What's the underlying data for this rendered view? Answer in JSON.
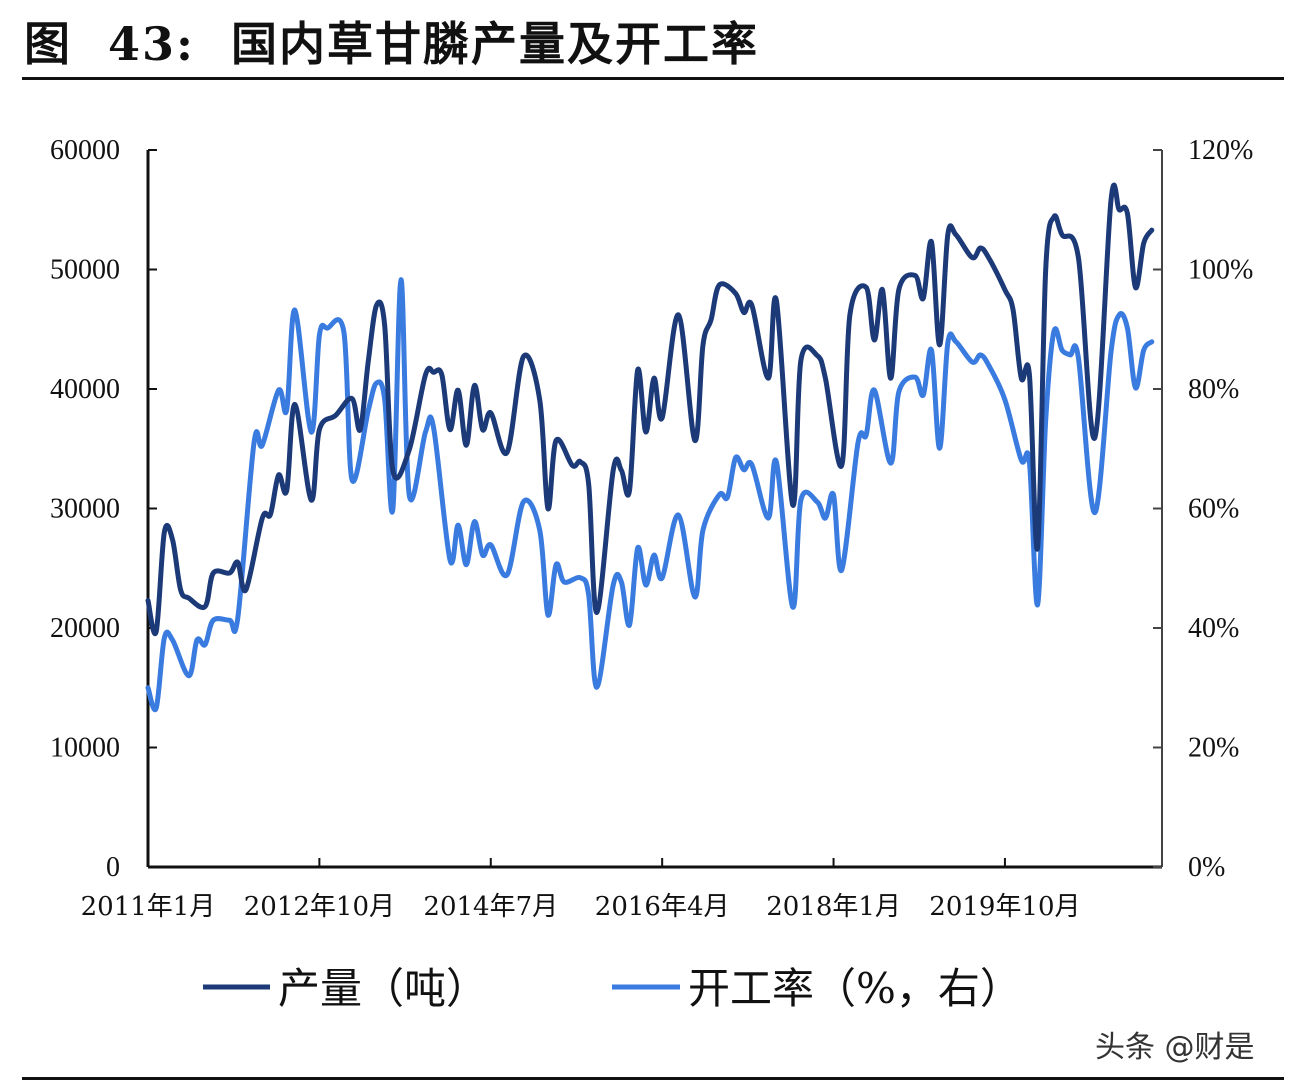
{
  "title": "图  43:  国内草甘膦产量及开工率",
  "watermark": "头条 @财是",
  "colors": {
    "production": "#1c3a78",
    "rate": "#3a7be0"
  },
  "chart_data": {
    "type": "line",
    "title": "国内草甘膦产量及开工率",
    "grid": false,
    "legend_position": "bottom",
    "x_tick_labels": [
      "2011年1月",
      "2012年10月",
      "2014年7月",
      "2016年4月",
      "2018年1月",
      "2019年10月"
    ],
    "x_tick_dates": [
      "2011-01",
      "2012-10",
      "2014-07",
      "2016-04",
      "2018-01",
      "2019-10"
    ],
    "x_range": [
      "2011-01",
      "2021-05"
    ],
    "y_left": {
      "range": [
        0,
        60000
      ],
      "ticks": [
        "0",
        "10000",
        "20000",
        "30000",
        "40000",
        "50000",
        "60000"
      ]
    },
    "y_right": {
      "range": [
        0,
        120
      ],
      "ticks": [
        "0%",
        "20%",
        "40%",
        "60%",
        "80%",
        "100%",
        "120%"
      ]
    },
    "series": [
      {
        "name": "产量（吨）",
        "axis": "left",
        "points": [
          [
            "2011-01",
            22300
          ],
          [
            "2011-02",
            19700
          ],
          [
            "2011-03",
            28000
          ],
          [
            "2011-04",
            27400
          ],
          [
            "2011-05",
            23200
          ],
          [
            "2011-06",
            22500
          ],
          [
            "2011-08",
            21800
          ],
          [
            "2011-09",
            24600
          ],
          [
            "2011-11",
            24600
          ],
          [
            "2011-12",
            25500
          ],
          [
            "2012-01",
            23200
          ],
          [
            "2012-03",
            29200
          ],
          [
            "2012-04",
            29500
          ],
          [
            "2012-05",
            32800
          ],
          [
            "2012-06",
            31500
          ],
          [
            "2012-07",
            38700
          ],
          [
            "2012-09",
            30700
          ],
          [
            "2012-10",
            36600
          ],
          [
            "2012-12",
            37800
          ],
          [
            "2013-02",
            39200
          ],
          [
            "2013-03",
            36600
          ],
          [
            "2013-04",
            42400
          ],
          [
            "2013-05",
            47000
          ],
          [
            "2013-06",
            45300
          ],
          [
            "2013-07",
            33200
          ],
          [
            "2013-09",
            34900
          ],
          [
            "2013-11",
            41200
          ],
          [
            "2013-12",
            41400
          ],
          [
            "2014-01",
            41200
          ],
          [
            "2014-02",
            36600
          ],
          [
            "2014-03",
            39900
          ],
          [
            "2014-04",
            35300
          ],
          [
            "2014-05",
            40300
          ],
          [
            "2014-06",
            36600
          ],
          [
            "2014-07",
            38000
          ],
          [
            "2014-09",
            34700
          ],
          [
            "2014-11",
            42700
          ],
          [
            "2015-01",
            39100
          ],
          [
            "2015-02",
            30000
          ],
          [
            "2015-03",
            35700
          ],
          [
            "2015-05",
            33600
          ],
          [
            "2015-06",
            33900
          ],
          [
            "2015-07",
            32000
          ],
          [
            "2015-08",
            21300
          ],
          [
            "2015-10",
            33200
          ],
          [
            "2015-11",
            33200
          ],
          [
            "2015-12",
            31500
          ],
          [
            "2016-01",
            41600
          ],
          [
            "2016-02",
            36400
          ],
          [
            "2016-03",
            40900
          ],
          [
            "2016-04",
            37600
          ],
          [
            "2016-06",
            46200
          ],
          [
            "2016-08",
            35700
          ],
          [
            "2016-09",
            43700
          ],
          [
            "2016-10",
            45800
          ],
          [
            "2016-11",
            48700
          ],
          [
            "2017-01",
            48000
          ],
          [
            "2017-02",
            46400
          ],
          [
            "2017-03",
            47000
          ],
          [
            "2017-05",
            40900
          ],
          [
            "2017-06",
            47400
          ],
          [
            "2017-08",
            30300
          ],
          [
            "2017-09",
            42400
          ],
          [
            "2017-11",
            42800
          ],
          [
            "2017-12",
            40900
          ],
          [
            "2018-02",
            33600
          ],
          [
            "2018-03",
            46200
          ],
          [
            "2018-05",
            48500
          ],
          [
            "2018-06",
            44100
          ],
          [
            "2018-07",
            48300
          ],
          [
            "2018-08",
            40900
          ],
          [
            "2018-09",
            48300
          ],
          [
            "2018-11",
            49500
          ],
          [
            "2018-12",
            47600
          ],
          [
            "2019-01",
            52300
          ],
          [
            "2019-02",
            43700
          ],
          [
            "2019-03",
            52900
          ],
          [
            "2019-04",
            52900
          ],
          [
            "2019-06",
            51000
          ],
          [
            "2019-07",
            51800
          ],
          [
            "2019-08",
            51000
          ],
          [
            "2019-10",
            48300
          ],
          [
            "2019-11",
            46600
          ],
          [
            "2019-12",
            40900
          ],
          [
            "2020-01",
            41200
          ],
          [
            "2020-02",
            26700
          ],
          [
            "2020-03",
            50000
          ],
          [
            "2020-04",
            54400
          ],
          [
            "2020-05",
            52900
          ],
          [
            "2020-07",
            51000
          ],
          [
            "2020-09",
            35900
          ],
          [
            "2020-11",
            55800
          ],
          [
            "2020-12",
            55000
          ],
          [
            "2021-01",
            54700
          ],
          [
            "2021-02",
            48500
          ],
          [
            "2021-03",
            52200
          ],
          [
            "2021-04",
            53300
          ]
        ]
      },
      {
        "name": "开工率（%，右）",
        "axis": "right",
        "points": [
          [
            "2011-01",
            30.0
          ],
          [
            "2011-02",
            26.6
          ],
          [
            "2011-03",
            38.3
          ],
          [
            "2011-04",
            38.0
          ],
          [
            "2011-06",
            32.0
          ],
          [
            "2011-07",
            38.0
          ],
          [
            "2011-08",
            37.2
          ],
          [
            "2011-09",
            41.3
          ],
          [
            "2011-11",
            41.3
          ],
          [
            "2011-12",
            41.7
          ],
          [
            "2012-02",
            71.1
          ],
          [
            "2012-03",
            70.6
          ],
          [
            "2012-05",
            79.8
          ],
          [
            "2012-06",
            76.5
          ],
          [
            "2012-07",
            93.2
          ],
          [
            "2012-09",
            72.8
          ],
          [
            "2012-10",
            89.0
          ],
          [
            "2012-11",
            90.2
          ],
          [
            "2013-01",
            89.5
          ],
          [
            "2013-02",
            64.8
          ],
          [
            "2013-04",
            76.5
          ],
          [
            "2013-05",
            81.0
          ],
          [
            "2013-06",
            78.2
          ],
          [
            "2013-07",
            59.8
          ],
          [
            "2013-08",
            98.3
          ],
          [
            "2013-09",
            62.3
          ],
          [
            "2013-11",
            72.8
          ],
          [
            "2013-12",
            73.5
          ],
          [
            "2014-02",
            51.4
          ],
          [
            "2014-03",
            57.2
          ],
          [
            "2014-04",
            50.6
          ],
          [
            "2014-05",
            57.8
          ],
          [
            "2014-06",
            52.2
          ],
          [
            "2014-07",
            53.9
          ],
          [
            "2014-09",
            48.9
          ],
          [
            "2014-11",
            61.1
          ],
          [
            "2015-01",
            56.4
          ],
          [
            "2015-02",
            42.2
          ],
          [
            "2015-03",
            50.6
          ],
          [
            "2015-04",
            47.7
          ],
          [
            "2015-06",
            48.4
          ],
          [
            "2015-07",
            45.5
          ],
          [
            "2015-08",
            30.1
          ],
          [
            "2015-10",
            47.2
          ],
          [
            "2015-11",
            47.7
          ],
          [
            "2015-12",
            40.5
          ],
          [
            "2016-01",
            53.4
          ],
          [
            "2016-02",
            47.2
          ],
          [
            "2016-03",
            52.2
          ],
          [
            "2016-04",
            48.4
          ],
          [
            "2016-06",
            58.9
          ],
          [
            "2016-08",
            45.2
          ],
          [
            "2016-09",
            56.4
          ],
          [
            "2016-11",
            62.3
          ],
          [
            "2016-12",
            61.9
          ],
          [
            "2017-01",
            68.5
          ],
          [
            "2017-02",
            66.5
          ],
          [
            "2017-03",
            67.3
          ],
          [
            "2017-05",
            58.4
          ],
          [
            "2017-06",
            67.8
          ],
          [
            "2017-08",
            43.5
          ],
          [
            "2017-09",
            61.4
          ],
          [
            "2017-11",
            61.1
          ],
          [
            "2017-12",
            58.4
          ],
          [
            "2018-01",
            62.3
          ],
          [
            "2018-02",
            49.7
          ],
          [
            "2018-04",
            71.0
          ],
          [
            "2018-05",
            72.3
          ],
          [
            "2018-06",
            79.8
          ],
          [
            "2018-08",
            67.6
          ],
          [
            "2018-09",
            79.5
          ],
          [
            "2018-11",
            82.0
          ],
          [
            "2018-12",
            79.0
          ],
          [
            "2019-01",
            86.5
          ],
          [
            "2019-02",
            70.1
          ],
          [
            "2019-03",
            87.7
          ],
          [
            "2019-04",
            87.9
          ],
          [
            "2019-06",
            84.5
          ],
          [
            "2019-07",
            85.7
          ],
          [
            "2019-08",
            84.0
          ],
          [
            "2019-10",
            78.2
          ],
          [
            "2019-12",
            68.1
          ],
          [
            "2020-01",
            67.8
          ],
          [
            "2020-02",
            43.9
          ],
          [
            "2020-03",
            74.8
          ],
          [
            "2020-04",
            89.6
          ],
          [
            "2020-05",
            86.5
          ],
          [
            "2020-06",
            85.7
          ],
          [
            "2020-07",
            85.2
          ],
          [
            "2020-09",
            59.3
          ],
          [
            "2020-11",
            86.2
          ],
          [
            "2020-12",
            92.4
          ],
          [
            "2021-01",
            90.2
          ],
          [
            "2021-02",
            80.2
          ],
          [
            "2021-03",
            86.5
          ],
          [
            "2021-04",
            87.9
          ]
        ]
      }
    ]
  }
}
